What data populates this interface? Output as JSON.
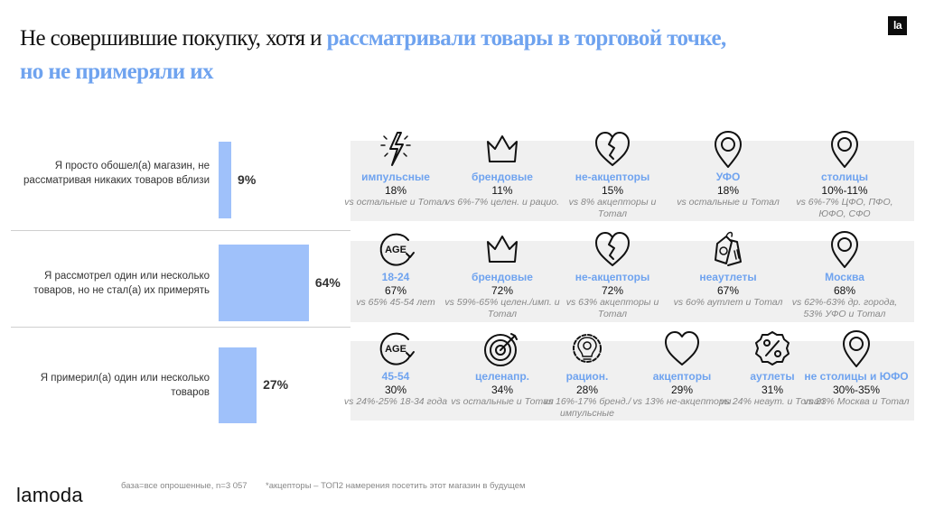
{
  "header": {
    "title_plain": "Не совершившие покупку, хотя и ",
    "title_accent_1": "рассматривали товары в торговой точке,",
    "title_accent_2": "но не примеряли их",
    "logo_badge": "la"
  },
  "colors": {
    "accent": "#6fa3ef",
    "bar": "#9fc1fa",
    "panel_bg": "#f0f0f0"
  },
  "chart_data": {
    "type": "bar",
    "orientation": "horizontal",
    "title": "",
    "xlabel": "",
    "ylabel": "",
    "categories": [
      "Я просто обошел(а) магазин, не рассматривая никаких товаров вблизи",
      "Я рассмотрел один или несколько товаров, но не стал(а) их примерять",
      "Я примерил(а) один или несколько товаров"
    ],
    "values": [
      9,
      64,
      27
    ],
    "value_labels": [
      "9%",
      "64%",
      "27%"
    ],
    "unit": "%",
    "xlim": [
      0,
      100
    ]
  },
  "panels": [
    {
      "cells": [
        {
          "icon": "lightning-icon",
          "name": "импульсные",
          "pct": "18%",
          "note": "vs остальные и Тотал"
        },
        {
          "icon": "crown-icon",
          "name": "брендовые",
          "pct": "11%",
          "note": "vs 6%-7% целен. и рацио."
        },
        {
          "icon": "broken-heart-icon",
          "name": "не-акцепторы",
          "pct": "15%",
          "note": "vs 8% акцепторы и Тотал"
        },
        {
          "icon": "map-pin-icon",
          "name": "УФО",
          "pct": "18%",
          "note": "vs остальные и Тотал"
        },
        {
          "icon": "map-pin-icon",
          "name": "столицы",
          "pct": "10%-11%",
          "note": "vs 6%-7% ЦФО, ПФО, ЮФО, СФО"
        }
      ]
    },
    {
      "cells": [
        {
          "icon": "age-icon",
          "name": "18-24",
          "pct": "67%",
          "note": "vs 65% 45-54 лет"
        },
        {
          "icon": "crown-icon",
          "name": "брендовые",
          "pct": "72%",
          "note": "vs 59%-65% целен./имп. и Тотал"
        },
        {
          "icon": "broken-heart-icon",
          "name": "не-акцепторы",
          "pct": "72%",
          "note": "vs 63% акцепторы и Тотал"
        },
        {
          "icon": "price-tags-icon",
          "name": "неаутлеты",
          "pct": "67%",
          "note": "vs 6о% аутлет и Тотал"
        },
        {
          "icon": "map-pin-icon",
          "name": "Москва",
          "pct": "68%",
          "note": "vs 62%-63% др. города, 53% УФО и Тотал"
        }
      ]
    },
    {
      "cells": [
        {
          "icon": "age-icon",
          "name": "45-54",
          "pct": "30%",
          "note": "vs 24%-25% 18-34 года"
        },
        {
          "icon": "target-icon",
          "name": "целенапр.",
          "pct": "34%",
          "note": "vs остальные и Тотал"
        },
        {
          "icon": "gear-bulb-icon",
          "name": "рацион.",
          "pct": "28%",
          "note": "vs 16%-17% бренд./импульсные"
        },
        {
          "icon": "heart-icon",
          "name": "акцепторы",
          "pct": "29%",
          "note": "vs 13% не-акцепторы"
        },
        {
          "icon": "percent-badge-icon",
          "name": "аутлеты",
          "pct": "31%",
          "note": "vs 24% неаут. и Тотал"
        },
        {
          "icon": "map-pin-icon",
          "name": "не столицы и ЮФО",
          "pct": "30%-35%",
          "note": "vs 23% Москва и Тотал"
        }
      ]
    }
  ],
  "footer": {
    "brand": "lamoda",
    "base": "база=все опрошенные, n=3 057",
    "note": "*акцепторы – ТОП2 намерения посетить этот магазин в будущем"
  }
}
